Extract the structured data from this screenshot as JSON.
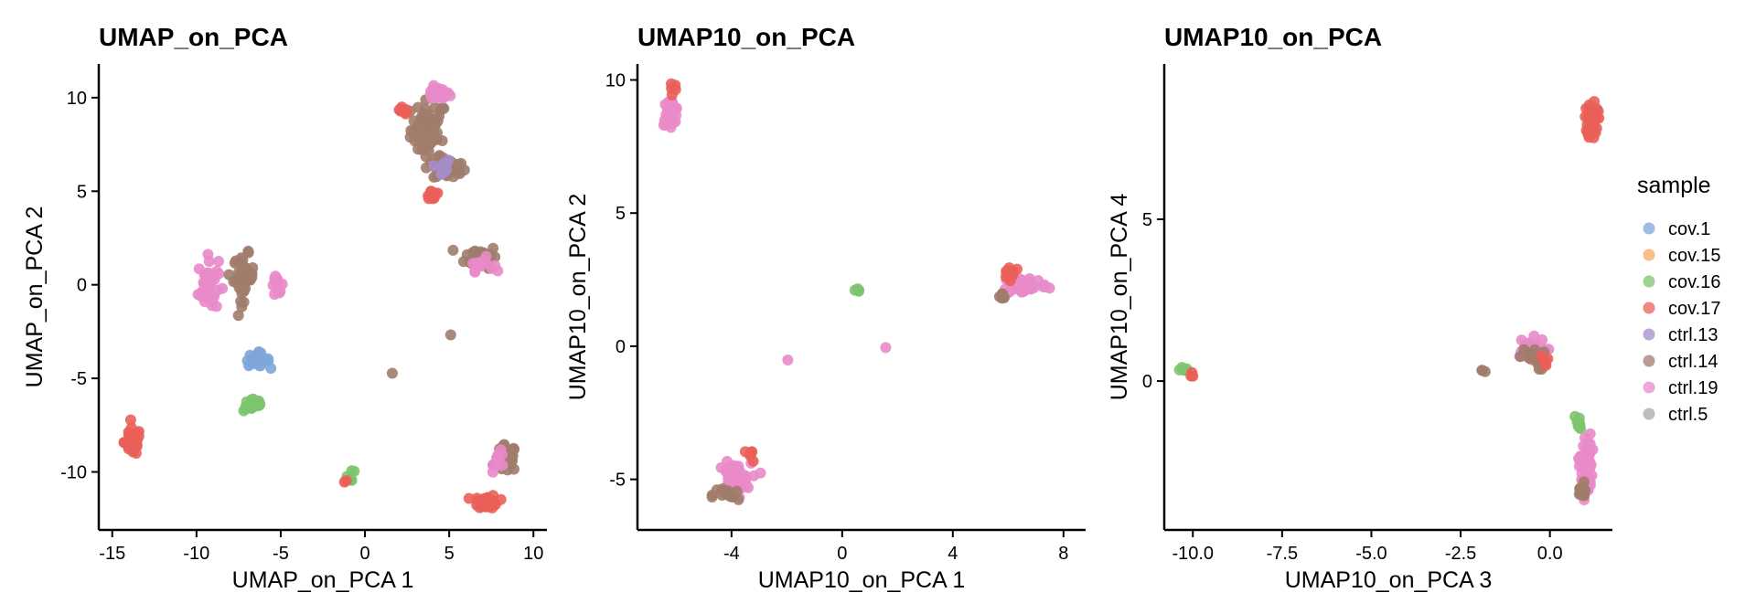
{
  "legend": {
    "title": "sample",
    "items": [
      {
        "label": "cov.1",
        "color": "#7ea6d9"
      },
      {
        "label": "cov.15",
        "color": "#f7a863"
      },
      {
        "label": "cov.16",
        "color": "#7cc46e"
      },
      {
        "label": "cov.17",
        "color": "#ea5f58"
      },
      {
        "label": "ctrl.13",
        "color": "#a58dc8"
      },
      {
        "label": "ctrl.14",
        "color": "#a07c6b"
      },
      {
        "label": "ctrl.19",
        "color": "#e98ac9"
      },
      {
        "label": "ctrl.5",
        "color": "#a8a8a8"
      }
    ]
  },
  "chart_data": [
    {
      "type": "scatter",
      "title": "UMAP_on_PCA",
      "xlabel": "UMAP_on_PCA 1",
      "ylabel": "UMAP_on_PCA 2",
      "xlim": [
        -15.8,
        10.8
      ],
      "ylim": [
        -13.1,
        11.8
      ],
      "xticks": [
        -15,
        -10,
        -5,
        0,
        5,
        10
      ],
      "xtick_labels": [
        "-15",
        "-10",
        "-5",
        "0",
        "5",
        "10"
      ],
      "yticks": [
        10,
        5,
        0,
        -5,
        -10
      ],
      "ytick_labels": [
        "10",
        "5",
        "0",
        "-5",
        "-10"
      ],
      "clusters": [
        {
          "x": 3.8,
          "y": 8.3,
          "sx": 0.9,
          "sy": 1.3,
          "n": 60,
          "color": "ctrl.14"
        },
        {
          "x": 4.3,
          "y": 10.2,
          "sx": 0.6,
          "sy": 0.3,
          "n": 25,
          "color": "ctrl.19"
        },
        {
          "x": 2.2,
          "y": 9.2,
          "sx": 0.3,
          "sy": 0.3,
          "n": 8,
          "color": "cov.17"
        },
        {
          "x": 5.0,
          "y": 6.2,
          "sx": 0.8,
          "sy": 0.5,
          "n": 30,
          "color": "ctrl.14"
        },
        {
          "x": 4.5,
          "y": 6.3,
          "sx": 0.5,
          "sy": 0.4,
          "n": 12,
          "color": "ctrl.13"
        },
        {
          "x": 4.0,
          "y": 4.8,
          "sx": 0.4,
          "sy": 0.3,
          "n": 8,
          "color": "cov.17"
        },
        {
          "x": 6.9,
          "y": 1.5,
          "sx": 0.8,
          "sy": 0.5,
          "n": 40,
          "color": "ctrl.14"
        },
        {
          "x": 6.9,
          "y": 1.1,
          "sx": 0.6,
          "sy": 0.3,
          "n": 15,
          "color": "ctrl.19"
        },
        {
          "x": -9.3,
          "y": 0.0,
          "sx": 0.5,
          "sy": 1.2,
          "n": 45,
          "color": "ctrl.19"
        },
        {
          "x": -7.2,
          "y": 0.4,
          "sx": 0.5,
          "sy": 1.0,
          "n": 45,
          "color": "ctrl.14"
        },
        {
          "x": -5.2,
          "y": 0.0,
          "sx": 0.3,
          "sy": 0.4,
          "n": 12,
          "color": "ctrl.19"
        },
        {
          "x": -6.4,
          "y": -4.0,
          "sx": 0.6,
          "sy": 0.3,
          "n": 25,
          "color": "cov.1"
        },
        {
          "x": -6.6,
          "y": -6.4,
          "sx": 0.5,
          "sy": 0.3,
          "n": 25,
          "color": "cov.16"
        },
        {
          "x": -13.8,
          "y": -8.4,
          "sx": 0.4,
          "sy": 0.6,
          "n": 45,
          "color": "cov.17"
        },
        {
          "x": 8.4,
          "y": -9.3,
          "sx": 0.5,
          "sy": 0.6,
          "n": 40,
          "color": "ctrl.14"
        },
        {
          "x": 8.0,
          "y": -9.4,
          "sx": 0.3,
          "sy": 0.4,
          "n": 12,
          "color": "ctrl.19"
        },
        {
          "x": 7.2,
          "y": -11.6,
          "sx": 0.6,
          "sy": 0.3,
          "n": 35,
          "color": "cov.17"
        },
        {
          "x": -0.8,
          "y": -10.2,
          "sx": 0.2,
          "sy": 0.3,
          "n": 6,
          "color": "cov.16"
        },
        {
          "x": -1.1,
          "y": -10.5,
          "sx": 0.1,
          "sy": 0.1,
          "n": 2,
          "color": "cov.17"
        },
        {
          "x": 1.6,
          "y": -4.8,
          "sx": 0.05,
          "sy": 0.05,
          "n": 1,
          "color": "ctrl.14"
        },
        {
          "x": 5.1,
          "y": -2.7,
          "sx": 0.05,
          "sy": 0.05,
          "n": 1,
          "color": "ctrl.14"
        }
      ]
    },
    {
      "type": "scatter",
      "title": "UMAP10_on_PCA",
      "xlabel": "UMAP10_on_PCA 1",
      "ylabel": "UMAP10_on_PCA 2",
      "xlim": [
        -7.4,
        8.8
      ],
      "ylim": [
        -6.9,
        10.6
      ],
      "xticks": [
        -4,
        0,
        4,
        8
      ],
      "xtick_labels": [
        "-4",
        "0",
        "4",
        "8"
      ],
      "yticks": [
        10,
        5,
        0,
        -5
      ],
      "ytick_labels": [
        "10",
        "5",
        "0",
        "-5"
      ],
      "clusters": [
        {
          "x": -6.2,
          "y": 8.8,
          "sx": 0.25,
          "sy": 0.4,
          "n": 30,
          "color": "ctrl.19"
        },
        {
          "x": -6.1,
          "y": 9.8,
          "sx": 0.15,
          "sy": 0.15,
          "n": 5,
          "color": "cov.17"
        },
        {
          "x": 0.6,
          "y": 2.1,
          "sx": 0.1,
          "sy": 0.1,
          "n": 4,
          "color": "cov.16"
        },
        {
          "x": 1.5,
          "y": -0.0,
          "sx": 0.05,
          "sy": 0.05,
          "n": 1,
          "color": "ctrl.19"
        },
        {
          "x": -2.0,
          "y": -0.5,
          "sx": 0.05,
          "sy": 0.05,
          "n": 1,
          "color": "ctrl.19"
        },
        {
          "x": -3.9,
          "y": -5.0,
          "sx": 0.5,
          "sy": 0.5,
          "n": 55,
          "color": "ctrl.19"
        },
        {
          "x": -4.2,
          "y": -5.6,
          "sx": 0.4,
          "sy": 0.3,
          "n": 15,
          "color": "ctrl.14"
        },
        {
          "x": -3.3,
          "y": -4.1,
          "sx": 0.2,
          "sy": 0.2,
          "n": 6,
          "color": "cov.17"
        },
        {
          "x": 6.6,
          "y": 2.3,
          "sx": 0.7,
          "sy": 0.3,
          "n": 50,
          "color": "ctrl.19"
        },
        {
          "x": 6.1,
          "y": 2.8,
          "sx": 0.25,
          "sy": 0.2,
          "n": 12,
          "color": "cov.17"
        },
        {
          "x": 5.8,
          "y": 1.8,
          "sx": 0.2,
          "sy": 0.15,
          "n": 6,
          "color": "ctrl.14"
        }
      ]
    },
    {
      "type": "scatter",
      "title": "UMAP10_on_PCA",
      "xlabel": "UMAP10_on_PCA 3",
      "ylabel": "UMAP10_on_PCA 4",
      "xlim": [
        -10.8,
        1.75
      ],
      "ylim": [
        -4.6,
        9.8
      ],
      "xticks": [
        -10.0,
        -7.5,
        -5.0,
        -2.5,
        0.0
      ],
      "xtick_labels": [
        "-10.0",
        "-7.5",
        "-5.0",
        "-2.5",
        "0.0"
      ],
      "yticks": [
        5,
        0
      ],
      "ytick_labels": [
        "5",
        "0"
      ],
      "clusters": [
        {
          "x": 1.2,
          "y": 8.1,
          "sx": 0.12,
          "sy": 0.5,
          "n": 45,
          "color": "cov.17"
        },
        {
          "x": -10.3,
          "y": 0.4,
          "sx": 0.12,
          "sy": 0.08,
          "n": 6,
          "color": "cov.16"
        },
        {
          "x": -10.0,
          "y": 0.2,
          "sx": 0.08,
          "sy": 0.08,
          "n": 3,
          "color": "cov.17"
        },
        {
          "x": -1.9,
          "y": 0.3,
          "sx": 0.1,
          "sy": 0.05,
          "n": 3,
          "color": "ctrl.14"
        },
        {
          "x": -0.6,
          "y": 0.9,
          "sx": 0.4,
          "sy": 0.35,
          "n": 40,
          "color": "ctrl.19"
        },
        {
          "x": -0.5,
          "y": 0.7,
          "sx": 0.3,
          "sy": 0.3,
          "n": 15,
          "color": "ctrl.14"
        },
        {
          "x": -0.1,
          "y": 0.6,
          "sx": 0.15,
          "sy": 0.15,
          "n": 6,
          "color": "cov.17"
        },
        {
          "x": 1.0,
          "y": -2.6,
          "sx": 0.15,
          "sy": 0.8,
          "n": 45,
          "color": "ctrl.19"
        },
        {
          "x": 0.8,
          "y": -1.3,
          "sx": 0.08,
          "sy": 0.25,
          "n": 10,
          "color": "cov.16"
        },
        {
          "x": 0.9,
          "y": -3.5,
          "sx": 0.1,
          "sy": 0.3,
          "n": 10,
          "color": "ctrl.14"
        }
      ]
    }
  ]
}
